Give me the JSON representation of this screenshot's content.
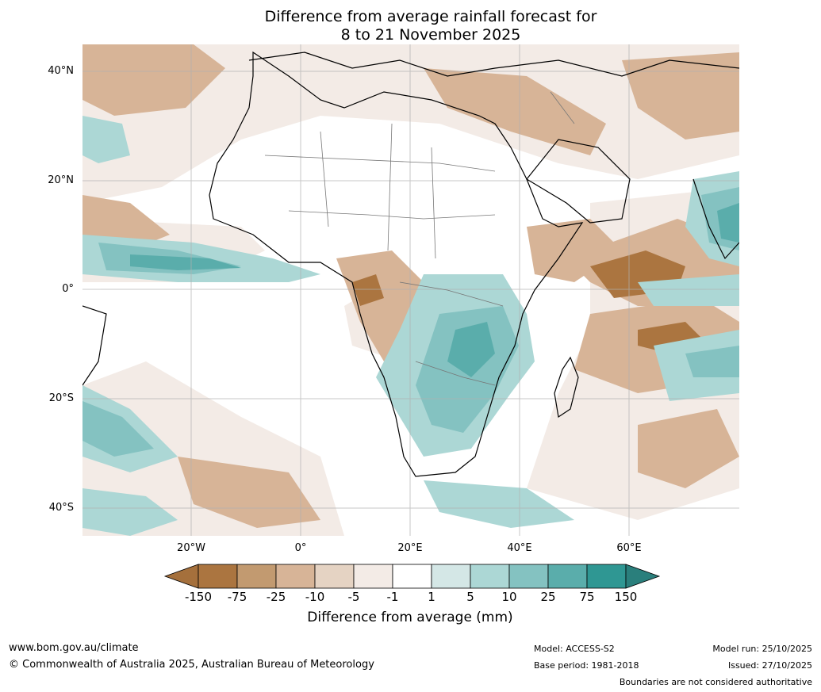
{
  "title": {
    "line1": "Difference from average rainfall forecast for",
    "line2": "8 to 21 November 2025"
  },
  "map": {
    "region": "Africa",
    "lat_ticks": [
      "40°N",
      "20°N",
      "0°",
      "20°S",
      "40°S"
    ],
    "lon_ticks": [
      "20°W",
      "0°",
      "20°E",
      "40°E",
      "60°E"
    ],
    "extent": {
      "lon_min": -40,
      "lon_max": 80,
      "lat_min": -45,
      "lat_max": 45
    }
  },
  "colorbar": {
    "title": "Difference from average (mm)",
    "tick_labels": [
      "-150",
      "-75",
      "-25",
      "-10",
      "-5",
      "-1",
      "1",
      "5",
      "10",
      "25",
      "75",
      "150"
    ],
    "colors": [
      "#a5703c",
      "#ab7540",
      "#c29a70",
      "#d7b497",
      "#e5d3c3",
      "#f3ebe6",
      "#ffffff",
      "#d4e7e6",
      "#acd7d5",
      "#84c2c1",
      "#5aadab",
      "#2f9793",
      "#2a7f7c"
    ]
  },
  "footer": {
    "website": "www.bom.gov.au/climate",
    "copyright": "© Commonwealth of Australia 2025, Australian Bureau of Meteorology",
    "model": "Model: ACCESS-S2",
    "base_period": "Base period: 1981-2018",
    "model_run": "Model run: 25/10/2025",
    "issued": "Issued: 27/10/2025",
    "disclaimer": "Boundaries are not considered authoritative"
  }
}
